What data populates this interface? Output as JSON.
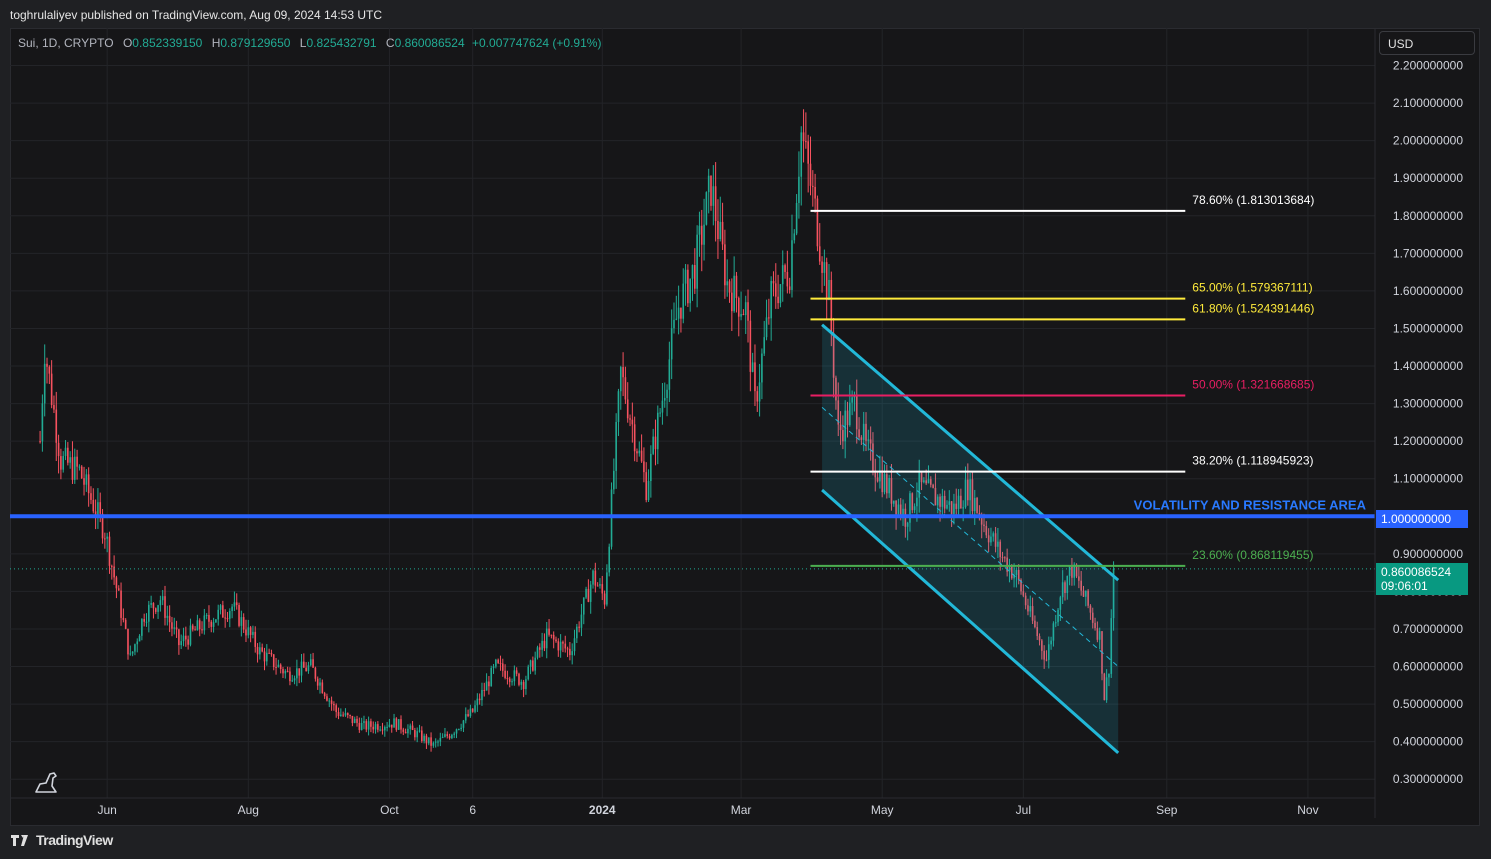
{
  "header": {
    "published_line": "toghrulaliyev published on TradingView.com, Aug 09, 2024 14:53 UTC"
  },
  "legend": {
    "symbol": "Sui, 1D, CRYPTO",
    "open_label": "O",
    "open": "0.852339150",
    "high_label": "H",
    "high": "0.879129650",
    "low_label": "L",
    "low": "0.825432791",
    "close_label": "C",
    "close": "0.860086524",
    "change": "+0.007747624 (+0.91%)"
  },
  "currency_button": "USD",
  "price_tags": {
    "resistance": "1.000000000",
    "last_price": "0.860086524",
    "countdown": "09:06:01"
  },
  "annotation": {
    "text": "VOLATILITY AND RESISTANCE AREA"
  },
  "footer": {
    "brand": "TradingView"
  },
  "colors": {
    "background": "#161618",
    "up": "#22ab94",
    "down": "#f7525f",
    "resistance": "#2962ff",
    "channel": "#22b8d8",
    "fib_white": "#ffffff",
    "fib_yellow": "#ffeb3b",
    "fib_red": "#e91e63",
    "fib_green": "#4caf50"
  },
  "chart_data": {
    "type": "candlestick",
    "y_axis": {
      "range": [
        0.25,
        2.3
      ],
      "ticks": [
        2.2,
        2.1,
        2.0,
        1.9,
        1.8,
        1.7,
        1.6,
        1.5,
        1.4,
        1.3,
        1.2,
        1.1,
        1.0,
        0.9,
        0.8,
        0.7,
        0.6,
        0.5,
        0.4,
        0.3
      ],
      "tick_labels": [
        "2.200000000",
        "2.100000000",
        "2.000000000",
        "1.900000000",
        "1.800000000",
        "1.700000000",
        "1.600000000",
        "1.500000000",
        "1.400000000",
        "1.300000000",
        "1.200000000",
        "1.100000000",
        "1.000000000",
        "0.900000000",
        "0.800000000",
        "0.700000000",
        "0.600000000",
        "0.500000000",
        "0.400000000",
        "0.300000000"
      ]
    },
    "x_axis": {
      "labels": [
        {
          "label": "Jun",
          "date": "2023-06-01"
        },
        {
          "label": "Aug",
          "date": "2023-08-01"
        },
        {
          "label": "Oct",
          "date": "2023-10-01"
        },
        {
          "label": "6",
          "date": "2023-11-06"
        },
        {
          "label": "2024",
          "date": "2024-01-01",
          "bold": true
        },
        {
          "label": "Mar",
          "date": "2024-03-01"
        },
        {
          "label": "May",
          "date": "2024-05-01"
        },
        {
          "label": "Jul",
          "date": "2024-07-01"
        },
        {
          "label": "Sep",
          "date": "2024-09-01"
        },
        {
          "label": "Nov",
          "date": "2024-11-01"
        }
      ],
      "start": "2023-04-20",
      "end": "2024-11-30"
    },
    "price_path": [
      [
        "2023-05-03",
        1.2
      ],
      [
        "2023-05-05",
        1.45
      ],
      [
        "2023-05-12",
        1.15
      ],
      [
        "2023-05-20",
        1.12
      ],
      [
        "2023-05-31",
        0.96
      ],
      [
        "2023-06-06",
        0.78
      ],
      [
        "2023-06-11",
        0.62
      ],
      [
        "2023-06-17",
        0.74
      ],
      [
        "2023-06-24",
        0.78
      ],
      [
        "2023-07-02",
        0.66
      ],
      [
        "2023-07-14",
        0.72
      ],
      [
        "2023-07-25",
        0.76
      ],
      [
        "2023-08-06",
        0.64
      ],
      [
        "2023-08-18",
        0.58
      ],
      [
        "2023-08-28",
        0.6
      ],
      [
        "2023-09-08",
        0.48
      ],
      [
        "2023-09-20",
        0.44
      ],
      [
        "2023-10-03",
        0.45
      ],
      [
        "2023-10-13",
        0.42
      ],
      [
        "2023-10-20",
        0.39
      ],
      [
        "2023-10-27",
        0.42
      ],
      [
        "2023-11-06",
        0.48
      ],
      [
        "2023-11-16",
        0.6
      ],
      [
        "2023-11-28",
        0.56
      ],
      [
        "2023-12-08",
        0.68
      ],
      [
        "2023-12-18",
        0.64
      ],
      [
        "2023-12-28",
        0.84
      ],
      [
        "2024-01-02",
        0.78
      ],
      [
        "2024-01-09",
        1.38
      ],
      [
        "2024-01-20",
        1.08
      ],
      [
        "2024-01-26",
        1.28
      ],
      [
        "2024-02-03",
        1.56
      ],
      [
        "2024-02-10",
        1.66
      ],
      [
        "2024-02-17",
        1.88
      ],
      [
        "2024-02-24",
        1.62
      ],
      [
        "2024-03-03",
        1.55
      ],
      [
        "2024-03-07",
        1.3
      ],
      [
        "2024-03-14",
        1.58
      ],
      [
        "2024-03-22",
        1.66
      ],
      [
        "2024-03-27",
        2.02
      ],
      [
        "2024-04-01",
        1.85
      ],
      [
        "2024-04-08",
        1.58
      ],
      [
        "2024-04-12",
        1.22
      ],
      [
        "2024-04-19",
        1.3
      ],
      [
        "2024-04-24",
        1.18
      ],
      [
        "2024-05-03",
        1.08
      ],
      [
        "2024-05-11",
        1.0
      ],
      [
        "2024-05-17",
        1.08
      ],
      [
        "2024-05-24",
        1.05
      ],
      [
        "2024-06-01",
        1.02
      ],
      [
        "2024-06-07",
        1.08
      ],
      [
        "2024-06-14",
        0.98
      ],
      [
        "2024-06-21",
        0.9
      ],
      [
        "2024-06-28",
        0.84
      ],
      [
        "2024-07-06",
        0.7
      ],
      [
        "2024-07-11",
        0.62
      ],
      [
        "2024-07-17",
        0.8
      ],
      [
        "2024-07-22",
        0.86
      ],
      [
        "2024-07-29",
        0.76
      ],
      [
        "2024-08-03",
        0.68
      ],
      [
        "2024-08-05",
        0.52
      ],
      [
        "2024-08-07",
        0.6
      ],
      [
        "2024-08-09",
        0.86
      ]
    ],
    "resistance_line": {
      "price": 1.0,
      "label": "VOLATILITY AND RESISTANCE AREA"
    },
    "current_price": 0.860086524,
    "fibonacci": {
      "start_date": "2024-03-31",
      "end_date": "2024-09-09",
      "levels": [
        {
          "label": "78.60% (1.813013684)",
          "price": 1.813013684,
          "color": "#ffffff"
        },
        {
          "label": "65.00% (1.579367111)",
          "price": 1.579367111,
          "color": "#ffeb3b"
        },
        {
          "label": "61.80% (1.524391446)",
          "price": 1.524391446,
          "color": "#ffeb3b"
        },
        {
          "label": "50.00% (1.321668685)",
          "price": 1.321668685,
          "color": "#e91e63"
        },
        {
          "label": "38.20% (1.118945923)",
          "price": 1.118945923,
          "color": "#ffffff"
        },
        {
          "label": "23.60% (0.868119455)",
          "price": 0.868119455,
          "color": "#4caf50"
        }
      ]
    },
    "descending_channel": {
      "upper": [
        [
          "2024-04-05",
          1.51
        ],
        [
          "2024-08-11",
          0.83
        ]
      ],
      "lower": [
        [
          "2024-04-05",
          1.07
        ],
        [
          "2024-08-11",
          0.37
        ]
      ],
      "midline": [
        [
          "2024-04-05",
          1.29
        ],
        [
          "2024-08-11",
          0.6
        ]
      ]
    }
  }
}
